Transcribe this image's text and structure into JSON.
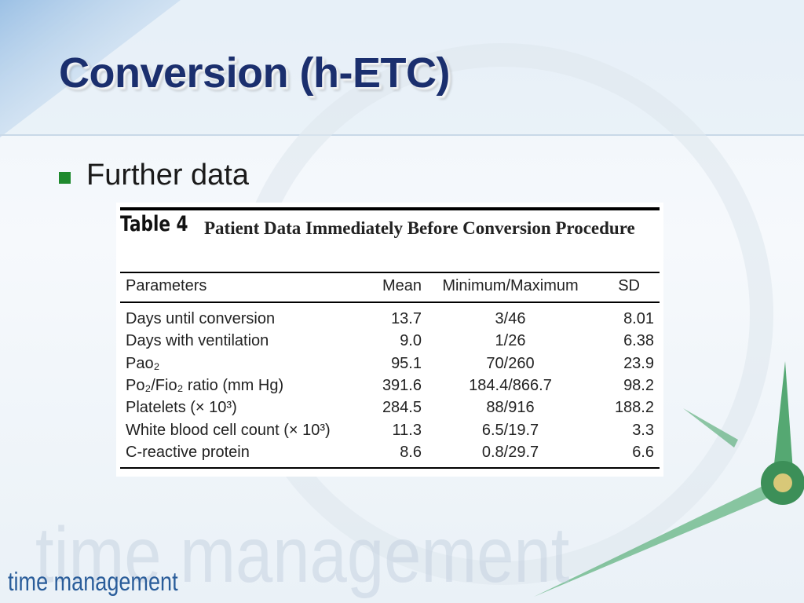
{
  "header": {
    "title": "Conversion (h-ETC)"
  },
  "bullet": "Further data",
  "table": {
    "label": "Table 4",
    "caption": "Patient Data Immediately Before Conversion Procedure",
    "columns": [
      "Parameters",
      "Mean",
      "Minimum/Maximum",
      "SD"
    ],
    "rows": [
      [
        "Days until conversion",
        "13.7",
        "3/46",
        "8.01"
      ],
      [
        "Days with ventilation",
        "9.0",
        "1/26",
        "6.38"
      ],
      [
        "Pao₂",
        "95.1",
        "70/260",
        "23.9"
      ],
      [
        "Po₂/Fio₂ ratio (mm Hg)",
        "391.6",
        "184.4/866.7",
        "98.2"
      ],
      [
        "Platelets (× 10³)",
        "284.5",
        "88/916",
        "188.2"
      ],
      [
        "White blood cell count (× 10³)",
        "11.3",
        "6.5/19.7",
        "3.3"
      ],
      [
        "C-reactive protein",
        "8.6",
        "0.8/29.7",
        "6.6"
      ]
    ]
  },
  "footer": {
    "label": "time management",
    "watermark": "time management"
  }
}
